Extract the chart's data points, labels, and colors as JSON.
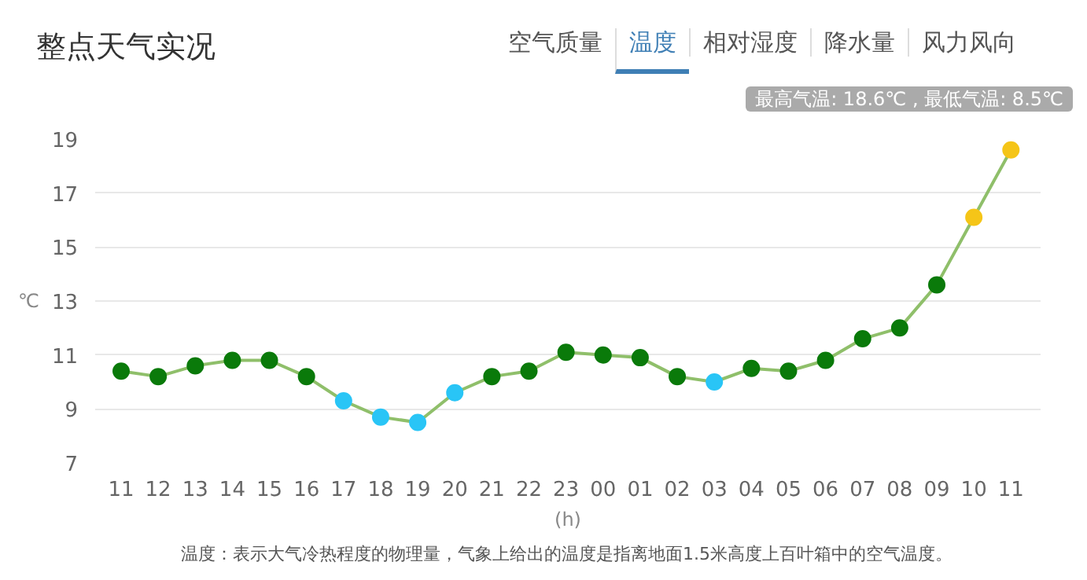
{
  "chart_data": {
    "type": "line",
    "title": "整点天气实况",
    "xlabel": "(h)",
    "ylabel": "℃",
    "categories": [
      "11",
      "12",
      "13",
      "14",
      "15",
      "16",
      "17",
      "18",
      "19",
      "20",
      "21",
      "22",
      "23",
      "00",
      "01",
      "02",
      "03",
      "04",
      "05",
      "06",
      "07",
      "08",
      "09",
      "10",
      "11"
    ],
    "series": [
      {
        "color": "#8fbf6a",
        "values": [
          10.4,
          10.2,
          10.6,
          10.8,
          10.8,
          10.2,
          9.3,
          8.7,
          8.5,
          9.6,
          10.2,
          10.4,
          11.1,
          11.0,
          10.9,
          10.2,
          10.0,
          10.5,
          10.4,
          10.8,
          11.6,
          12.0,
          13.6,
          16.1,
          18.6
        ],
        "colors": [
          "#0a7a0a",
          "#0a7a0a",
          "#0a7a0a",
          "#0a7a0a",
          "#0a7a0a",
          "#0a7a0a",
          "#29c5f6",
          "#29c5f6",
          "#29c5f6",
          "#29c5f6",
          "#0a7a0a",
          "#0a7a0a",
          "#0a7a0a",
          "#0a7a0a",
          "#0a7a0a",
          "#0a7a0a",
          "#29c5f6",
          "#0a7a0a",
          "#0a7a0a",
          "#0a7a0a",
          "#0a7a0a",
          "#0a7a0a",
          "#0a7a0a",
          "#f5c518",
          "#f5c518"
        ]
      }
    ],
    "ylim": [
      7,
      19
    ],
    "yticks": [
      7,
      9,
      11,
      13,
      15,
      17,
      19
    ],
    "grid": "y",
    "marker": "circle",
    "line_style": "solid",
    "annotations": [
      "最高气温: 18.6℃ , 最低气温: 8.5℃",
      "温度：表示大气冷热程度的物理量，气象上给出的温度是指离地面1.5米高度上百叶箱中的空气温度。",
      "空气质量",
      "温度",
      "相对湿度",
      "降水量",
      "风力风向"
    ]
  }
}
